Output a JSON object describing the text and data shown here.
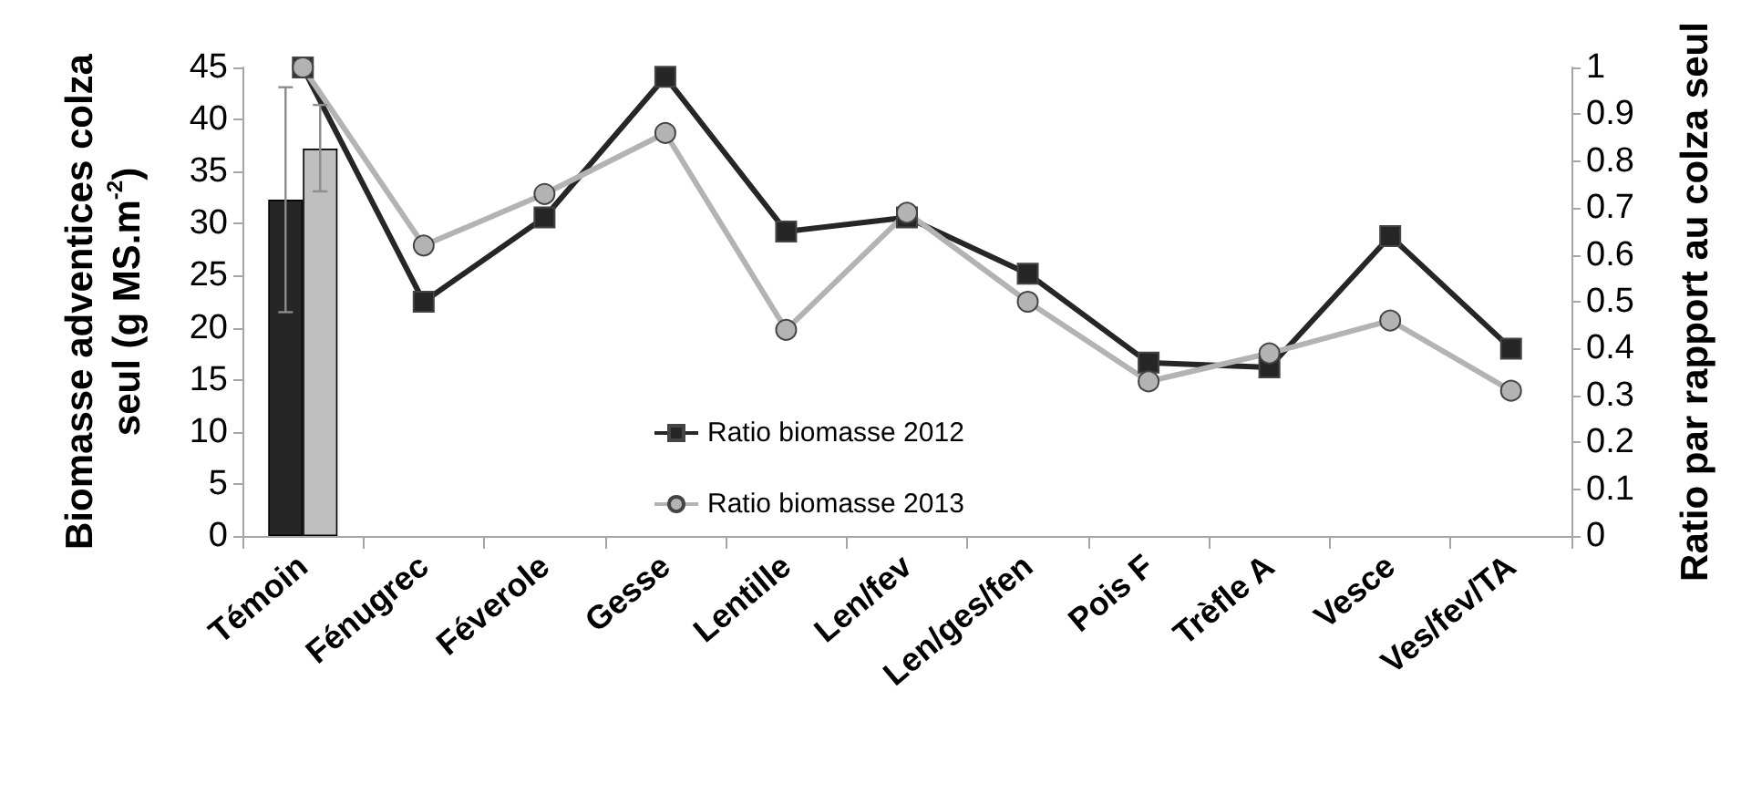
{
  "chart_data": {
    "type": "bar",
    "ylabel": "Biomasse adventices colza seul (g MS.m$^{-2}$)",
    "y2label": "Ratio par rapport au colza seul",
    "categories": [
      "Témoin",
      "Fénugrec",
      "Féverole",
      "Gesse",
      "Lentille",
      "Len/fev",
      "Len/ges/fen",
      "Pois F",
      "Trèfle A",
      "Vesce",
      "Ves/fev/TA"
    ],
    "series": [
      {
        "color": "#262626",
        "values": [
          32.3,
          null,
          null,
          null,
          null,
          null,
          null,
          null,
          null,
          null,
          null
        ],
        "errors": [
          [
            21.5,
            43.1
          ],
          null,
          null,
          null,
          null,
          null,
          null,
          null,
          null,
          null,
          null
        ]
      },
      {
        "color": "#bfbfbf",
        "values": [
          37.2,
          null,
          null,
          null,
          null,
          null,
          null,
          null,
          null,
          null,
          null
        ],
        "errors": [
          [
            33.1,
            41.4
          ],
          null,
          null,
          null,
          null,
          null,
          null,
          null,
          null,
          null,
          null
        ]
      },
      {
        "type": "line",
        "name": "Ratio biomasse 2012",
        "axis": "y2",
        "color": "#262626",
        "marker": "square",
        "values": [
          1.0,
          0.5,
          0.68,
          0.98,
          0.65,
          0.68,
          0.56,
          0.37,
          0.36,
          0.64,
          0.4
        ]
      },
      {
        "type": "line",
        "name": "Ratio biomasse 2013",
        "axis": "y2",
        "color": "#b3b3b3",
        "marker": "circle",
        "values": [
          1.0,
          0.62,
          0.73,
          0.86,
          0.44,
          0.69,
          0.5,
          0.33,
          0.39,
          0.46,
          0.31
        ]
      }
    ],
    "ylim": [
      0,
      45
    ],
    "yticks": [
      0,
      5,
      10,
      15,
      20,
      25,
      30,
      35,
      40,
      45
    ],
    "y2lim": [
      0,
      1
    ],
    "y2ticks": [
      0,
      0.1,
      0.2,
      0.3,
      0.4,
      0.5,
      0.6,
      0.7,
      0.8,
      0.9,
      1
    ],
    "grid": false,
    "legend": "center left"
  }
}
